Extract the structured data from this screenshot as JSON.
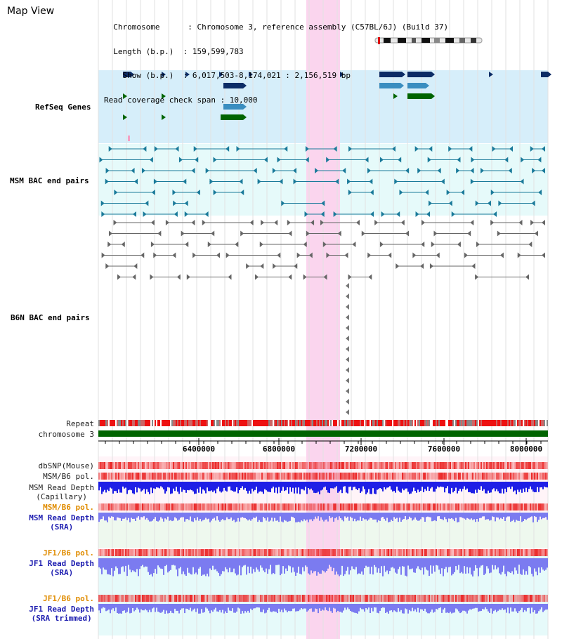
{
  "window": {
    "title": "Map View"
  },
  "info": {
    "lines": [
      "  Chromosome      : Chromosome 3, reference assembly (C57BL/6J) (Build 37)",
      "  Length (b.p.)  : 159,599,783",
      "    Show (b.p.)  : 6,017,503-8,174,021 : 2,156,519 bp",
      "Read coverage check span : 10,000"
    ]
  },
  "tracks": {
    "refseq": {
      "label": "RefSeq Genes",
      "color": "#1d3aa6"
    },
    "msm_bac": {
      "label": "MSM BAC end pairs",
      "color": "#1a6a8a"
    },
    "b6n_bac": {
      "label": "B6N BAC end pairs",
      "color": "#555555"
    },
    "repeat": {
      "label": "Repeat"
    },
    "chromosome": {
      "label": "chromosome 3"
    },
    "dbsnp": {
      "label": "dbSNP(Mouse)"
    },
    "msm_b6_pol_1": {
      "label": "MSM/B6 pol."
    },
    "msm_depth_cap": {
      "label1": "MSM Read Depth",
      "label2": "(Capillary)"
    },
    "msm_b6_pol_2": {
      "label": "MSM/B6 pol.",
      "color": "#e08c00"
    },
    "msm_depth_sra": {
      "label1": "MSM Read Depth",
      "label2": "(SRA)",
      "color": "#1d1db0"
    },
    "jf1_b6_pol_1": {
      "label": "JF1/B6 pol.",
      "color": "#e08c00"
    },
    "jf1_depth_sra": {
      "label1": "JF1 Read Depth",
      "label2": "(SRA)",
      "color": "#1d1db0"
    },
    "jf1_b6_pol_2": {
      "label": "JF1/B6 pol.",
      "color": "#e08c00"
    },
    "jf1_depth_trim": {
      "label1": "JF1 Read Depth",
      "label2": "(SRA trimmed)",
      "color": "#1d1db0"
    }
  },
  "axis": {
    "ticks": [
      "6400000",
      "6800000",
      "7200000",
      "7600000",
      "8000000"
    ]
  },
  "colors": {
    "highlight": "#fbd5ee",
    "refseq_bg": "#d6eefa",
    "bac_bg": "#e6fafa",
    "gene_dark": "#0c2c66",
    "gene_mid": "#3a8ec0",
    "gene_green": "#006400",
    "chromosome_bar": "#006400",
    "depth_blue": "#1f1fe6",
    "depth_light": "#7b7bf0"
  }
}
